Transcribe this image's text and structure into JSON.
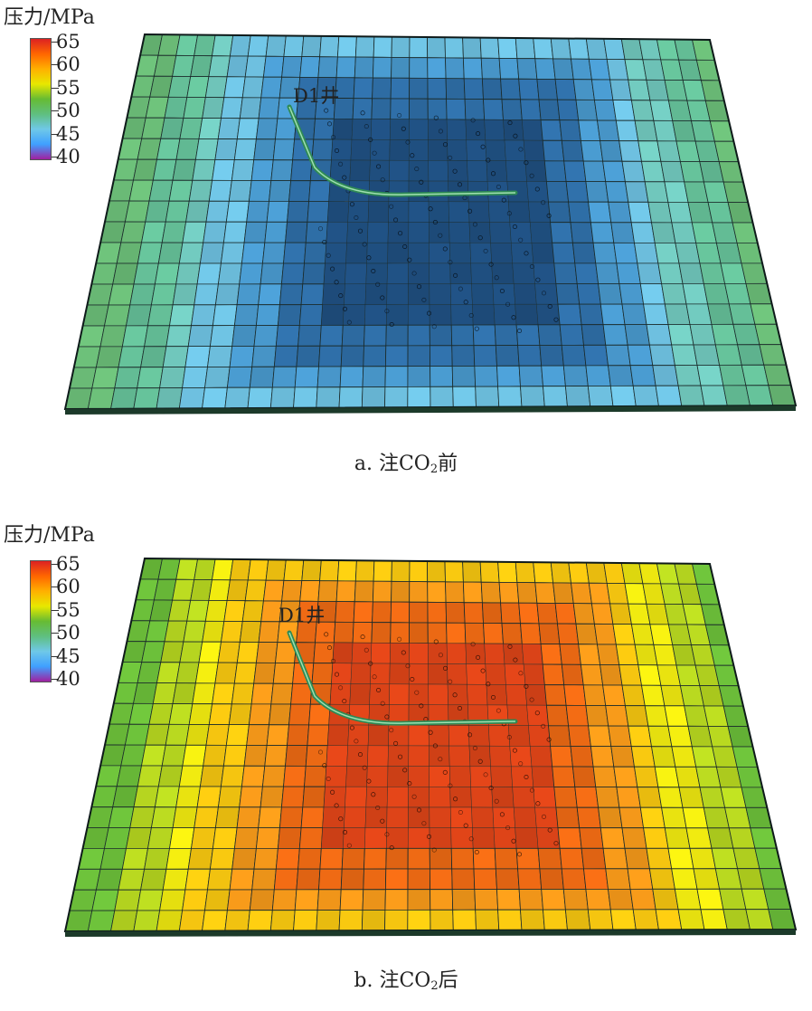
{
  "legend": {
    "title": "压力/MPa",
    "ticks": [
      "65",
      "60",
      "55",
      "50",
      "45",
      "40"
    ],
    "scale_stops": [
      "#a020a0",
      "#3fa0ff",
      "#6fc8e8",
      "#5fbf80",
      "#66bb33",
      "#e8e800",
      "#ffb000",
      "#ff6600",
      "#dd2222"
    ]
  },
  "panels": [
    {
      "id": "a",
      "well_label": "D1井",
      "caption_prefix": "a. 注CO",
      "caption_sub": "2",
      "caption_suffix": "前",
      "state": "before injection",
      "center_color": "#1f4f80",
      "ring_colors": [
        "#2f6fa8",
        "#4a9bd0",
        "#6fc3e3",
        "#72cabf",
        "#66c29a",
        "#6bbd78",
        "#6fbc66"
      ]
    },
    {
      "id": "b",
      "well_label": "D1井",
      "caption_prefix": "b. 注CO",
      "caption_sub": "2",
      "caption_suffix": "后",
      "state": "after injection",
      "center_color": "#dd4418",
      "ring_colors": [
        "#ee6a14",
        "#f79a1a",
        "#f8c810",
        "#f0ea10",
        "#b8d820",
        "#6cbf3a",
        "#62bd7a"
      ]
    }
  ]
}
